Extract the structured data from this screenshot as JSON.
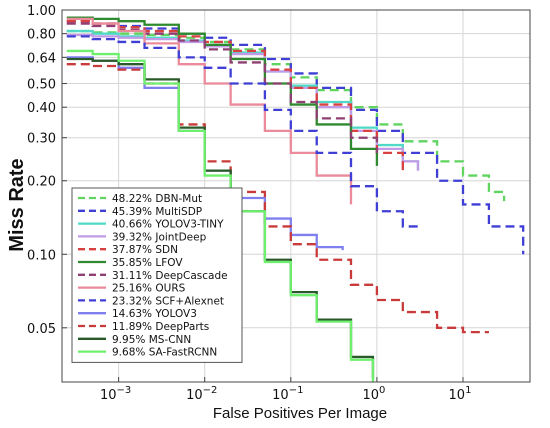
{
  "chart_data": {
    "type": "line",
    "title": "",
    "xlabel": "False Positives Per Image",
    "ylabel": "Miss Rate",
    "xscale": "log",
    "yscale": "log",
    "xlim": [
      0.00022,
      60
    ],
    "ylim": [
      0.03,
      1.0
    ],
    "x_ticks": [
      0.001,
      0.01,
      0.1,
      1,
      10
    ],
    "x_tick_labels": [
      "10^-3",
      "10^-2",
      "10^-1",
      "10^0",
      "10^1"
    ],
    "y_ticks": [
      1.0,
      0.8,
      0.64,
      0.5,
      0.4,
      0.3,
      0.2,
      0.1,
      0.05
    ],
    "y_tick_labels": [
      "1.00",
      "0.80",
      "0.64",
      "0.50",
      "0.40",
      "0.30",
      "0.20",
      "0.10",
      "0.05"
    ],
    "grid": true,
    "legend_position": "bottom-left",
    "series": [
      {
        "name": "48.22% DBN-Mut",
        "color": "#5fd45f",
        "dash": "dashed",
        "x": [
          0.00025,
          0.0005,
          0.001,
          0.002,
          0.005,
          0.01,
          0.02,
          0.05,
          0.1,
          0.2,
          0.5,
          1,
          2,
          5,
          10,
          20,
          30
        ],
        "y": [
          0.82,
          0.81,
          0.8,
          0.79,
          0.77,
          0.74,
          0.69,
          0.6,
          0.53,
          0.47,
          0.4,
          0.34,
          0.29,
          0.24,
          0.21,
          0.18,
          0.165
        ]
      },
      {
        "name": "45.39% MultiSDP",
        "color": "#3f3fd6",
        "dash": "dashed",
        "x": [
          0.00025,
          0.0005,
          0.001,
          0.002,
          0.005,
          0.01,
          0.02,
          0.05,
          0.1,
          0.2,
          0.5,
          1,
          2,
          5,
          10,
          20,
          50
        ],
        "y": [
          0.9,
          0.88,
          0.86,
          0.84,
          0.8,
          0.77,
          0.72,
          0.63,
          0.55,
          0.48,
          0.39,
          0.32,
          0.26,
          0.2,
          0.16,
          0.13,
          0.1
        ]
      },
      {
        "name": "40.66% YOLOV3-TINY",
        "color": "#4fd9c6",
        "dash": "solid",
        "x": [
          0.00025,
          0.0005,
          0.001,
          0.002,
          0.005,
          0.01,
          0.02,
          0.05,
          0.1,
          0.2,
          0.5,
          1,
          2,
          3
        ],
        "y": [
          0.82,
          0.8,
          0.78,
          0.77,
          0.75,
          0.72,
          0.67,
          0.56,
          0.49,
          0.42,
          0.33,
          0.28,
          0.24,
          0.22
        ]
      },
      {
        "name": "39.32% JointDeep",
        "color": "#c29be8",
        "dash": "solid",
        "x": [
          0.00025,
          0.0005,
          0.001,
          0.002,
          0.005,
          0.01,
          0.02,
          0.05,
          0.1,
          0.2,
          0.5,
          1,
          2,
          3
        ],
        "y": [
          0.79,
          0.78,
          0.77,
          0.76,
          0.74,
          0.71,
          0.66,
          0.56,
          0.48,
          0.4,
          0.32,
          0.27,
          0.24,
          0.22
        ]
      },
      {
        "name": "37.87% SDN",
        "color": "#d94040",
        "dash": "dashed",
        "x": [
          0.00025,
          0.0005,
          0.001,
          0.002,
          0.005,
          0.01,
          0.02,
          0.05,
          0.1,
          0.2,
          0.5,
          1,
          2
        ],
        "y": [
          0.9,
          0.88,
          0.85,
          0.82,
          0.78,
          0.74,
          0.68,
          0.57,
          0.48,
          0.41,
          0.32,
          0.26,
          0.22
        ]
      },
      {
        "name": "35.85% LFOV",
        "color": "#2f8a2f",
        "dash": "solid",
        "x": [
          0.00025,
          0.0005,
          0.001,
          0.002,
          0.005,
          0.01,
          0.02,
          0.05,
          0.1,
          0.2,
          0.5,
          1
        ],
        "y": [
          0.93,
          0.92,
          0.9,
          0.87,
          0.8,
          0.72,
          0.63,
          0.5,
          0.41,
          0.34,
          0.27,
          0.23
        ]
      },
      {
        "name": "31.11% DeepCascade",
        "color": "#8f3f72",
        "dash": "dashed",
        "x": [
          0.00025,
          0.0005,
          0.001,
          0.002,
          0.005,
          0.01,
          0.02,
          0.05,
          0.1,
          0.2,
          0.5,
          1
        ],
        "y": [
          0.88,
          0.86,
          0.83,
          0.8,
          0.75,
          0.69,
          0.61,
          0.5,
          0.42,
          0.36,
          0.3,
          0.26
        ]
      },
      {
        "name": "25.16% OURS",
        "color": "#ea8a9a",
        "dash": "solid",
        "x": [
          0.00025,
          0.0005,
          0.001,
          0.002,
          0.005,
          0.01,
          0.02,
          0.05,
          0.1,
          0.2,
          0.5
        ],
        "y": [
          0.92,
          0.88,
          0.82,
          0.73,
          0.6,
          0.5,
          0.41,
          0.32,
          0.26,
          0.21,
          0.16
        ]
      },
      {
        "name": "23.32% SCF+Alexnet",
        "color": "#3f3fd6",
        "dash": "dashed",
        "x": [
          0.00025,
          0.0005,
          0.001,
          0.002,
          0.005,
          0.01,
          0.02,
          0.05,
          0.1,
          0.2,
          0.5,
          1,
          2,
          3
        ],
        "y": [
          0.78,
          0.76,
          0.74,
          0.7,
          0.64,
          0.58,
          0.5,
          0.39,
          0.32,
          0.26,
          0.19,
          0.15,
          0.13,
          0.125
        ]
      },
      {
        "name": "14.63% YOLOV3",
        "color": "#7f7ff0",
        "dash": "solid",
        "x": [
          0.00025,
          0.0005,
          0.001,
          0.002,
          0.005,
          0.01,
          0.02,
          0.05,
          0.1,
          0.2,
          0.4
        ],
        "y": [
          0.64,
          0.62,
          0.58,
          0.48,
          0.32,
          0.22,
          0.17,
          0.14,
          0.12,
          0.107,
          0.104
        ]
      },
      {
        "name": "11.89% DeepParts",
        "color": "#c93a3a",
        "dash": "dashed",
        "x": [
          0.00025,
          0.0005,
          0.001,
          0.002,
          0.005,
          0.01,
          0.02,
          0.05,
          0.1,
          0.2,
          0.5,
          1,
          2,
          5,
          10,
          20
        ],
        "y": [
          0.6,
          0.59,
          0.57,
          0.5,
          0.34,
          0.24,
          0.18,
          0.13,
          0.11,
          0.095,
          0.075,
          0.065,
          0.058,
          0.05,
          0.048,
          0.048
        ]
      },
      {
        "name": "9.95% MS-CNN",
        "color": "#2a5a2a",
        "dash": "solid",
        "x": [
          0.00025,
          0.0005,
          0.001,
          0.002,
          0.005,
          0.01,
          0.02,
          0.05,
          0.1,
          0.2,
          0.5,
          0.9
        ],
        "y": [
          0.63,
          0.62,
          0.6,
          0.52,
          0.33,
          0.22,
          0.15,
          0.095,
          0.07,
          0.054,
          0.038,
          0.031
        ]
      },
      {
        "name": "9.68% SA-FastRCNN",
        "color": "#6ef06e",
        "dash": "solid",
        "x": [
          0.00025,
          0.0005,
          0.001,
          0.002,
          0.005,
          0.01,
          0.02,
          0.05,
          0.1,
          0.2,
          0.5,
          0.9
        ],
        "y": [
          0.68,
          0.66,
          0.62,
          0.5,
          0.32,
          0.21,
          0.15,
          0.093,
          0.068,
          0.053,
          0.037,
          0.03
        ]
      }
    ]
  }
}
